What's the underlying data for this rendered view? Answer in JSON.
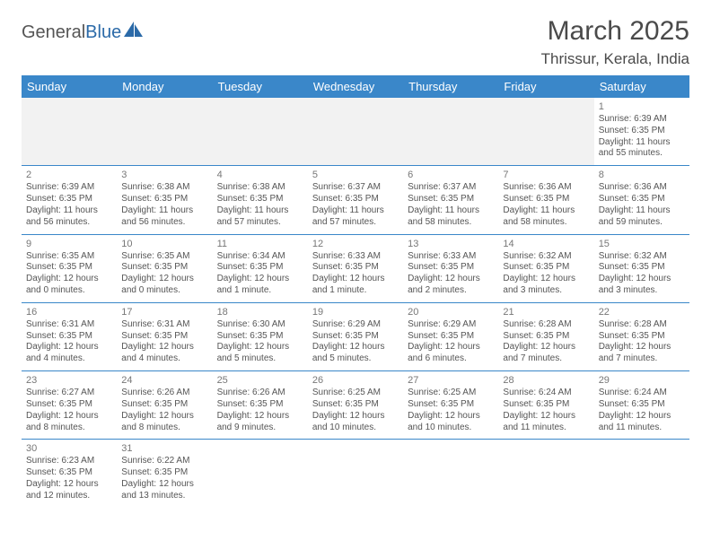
{
  "brand": {
    "part1": "General",
    "part2": "Blue"
  },
  "title": "March 2025",
  "location": "Thrissur, Kerala, India",
  "colors": {
    "header_bg": "#3a87c9",
    "header_text": "#ffffff",
    "row_border": "#3a87c9",
    "cell_text": "#555555",
    "daynum_text": "#777777",
    "empty_bg": "#f2f2f2",
    "title_text": "#4a4a4a",
    "brand_accent": "#2b6aa8"
  },
  "day_headers": [
    "Sunday",
    "Monday",
    "Tuesday",
    "Wednesday",
    "Thursday",
    "Friday",
    "Saturday"
  ],
  "weeks": [
    [
      null,
      null,
      null,
      null,
      null,
      null,
      {
        "n": "1",
        "sunrise": "Sunrise: 6:39 AM",
        "sunset": "Sunset: 6:35 PM",
        "daylight": "Daylight: 11 hours and 55 minutes."
      }
    ],
    [
      {
        "n": "2",
        "sunrise": "Sunrise: 6:39 AM",
        "sunset": "Sunset: 6:35 PM",
        "daylight": "Daylight: 11 hours and 56 minutes."
      },
      {
        "n": "3",
        "sunrise": "Sunrise: 6:38 AM",
        "sunset": "Sunset: 6:35 PM",
        "daylight": "Daylight: 11 hours and 56 minutes."
      },
      {
        "n": "4",
        "sunrise": "Sunrise: 6:38 AM",
        "sunset": "Sunset: 6:35 PM",
        "daylight": "Daylight: 11 hours and 57 minutes."
      },
      {
        "n": "5",
        "sunrise": "Sunrise: 6:37 AM",
        "sunset": "Sunset: 6:35 PM",
        "daylight": "Daylight: 11 hours and 57 minutes."
      },
      {
        "n": "6",
        "sunrise": "Sunrise: 6:37 AM",
        "sunset": "Sunset: 6:35 PM",
        "daylight": "Daylight: 11 hours and 58 minutes."
      },
      {
        "n": "7",
        "sunrise": "Sunrise: 6:36 AM",
        "sunset": "Sunset: 6:35 PM",
        "daylight": "Daylight: 11 hours and 58 minutes."
      },
      {
        "n": "8",
        "sunrise": "Sunrise: 6:36 AM",
        "sunset": "Sunset: 6:35 PM",
        "daylight": "Daylight: 11 hours and 59 minutes."
      }
    ],
    [
      {
        "n": "9",
        "sunrise": "Sunrise: 6:35 AM",
        "sunset": "Sunset: 6:35 PM",
        "daylight": "Daylight: 12 hours and 0 minutes."
      },
      {
        "n": "10",
        "sunrise": "Sunrise: 6:35 AM",
        "sunset": "Sunset: 6:35 PM",
        "daylight": "Daylight: 12 hours and 0 minutes."
      },
      {
        "n": "11",
        "sunrise": "Sunrise: 6:34 AM",
        "sunset": "Sunset: 6:35 PM",
        "daylight": "Daylight: 12 hours and 1 minute."
      },
      {
        "n": "12",
        "sunrise": "Sunrise: 6:33 AM",
        "sunset": "Sunset: 6:35 PM",
        "daylight": "Daylight: 12 hours and 1 minute."
      },
      {
        "n": "13",
        "sunrise": "Sunrise: 6:33 AM",
        "sunset": "Sunset: 6:35 PM",
        "daylight": "Daylight: 12 hours and 2 minutes."
      },
      {
        "n": "14",
        "sunrise": "Sunrise: 6:32 AM",
        "sunset": "Sunset: 6:35 PM",
        "daylight": "Daylight: 12 hours and 3 minutes."
      },
      {
        "n": "15",
        "sunrise": "Sunrise: 6:32 AM",
        "sunset": "Sunset: 6:35 PM",
        "daylight": "Daylight: 12 hours and 3 minutes."
      }
    ],
    [
      {
        "n": "16",
        "sunrise": "Sunrise: 6:31 AM",
        "sunset": "Sunset: 6:35 PM",
        "daylight": "Daylight: 12 hours and 4 minutes."
      },
      {
        "n": "17",
        "sunrise": "Sunrise: 6:31 AM",
        "sunset": "Sunset: 6:35 PM",
        "daylight": "Daylight: 12 hours and 4 minutes."
      },
      {
        "n": "18",
        "sunrise": "Sunrise: 6:30 AM",
        "sunset": "Sunset: 6:35 PM",
        "daylight": "Daylight: 12 hours and 5 minutes."
      },
      {
        "n": "19",
        "sunrise": "Sunrise: 6:29 AM",
        "sunset": "Sunset: 6:35 PM",
        "daylight": "Daylight: 12 hours and 5 minutes."
      },
      {
        "n": "20",
        "sunrise": "Sunrise: 6:29 AM",
        "sunset": "Sunset: 6:35 PM",
        "daylight": "Daylight: 12 hours and 6 minutes."
      },
      {
        "n": "21",
        "sunrise": "Sunrise: 6:28 AM",
        "sunset": "Sunset: 6:35 PM",
        "daylight": "Daylight: 12 hours and 7 minutes."
      },
      {
        "n": "22",
        "sunrise": "Sunrise: 6:28 AM",
        "sunset": "Sunset: 6:35 PM",
        "daylight": "Daylight: 12 hours and 7 minutes."
      }
    ],
    [
      {
        "n": "23",
        "sunrise": "Sunrise: 6:27 AM",
        "sunset": "Sunset: 6:35 PM",
        "daylight": "Daylight: 12 hours and 8 minutes."
      },
      {
        "n": "24",
        "sunrise": "Sunrise: 6:26 AM",
        "sunset": "Sunset: 6:35 PM",
        "daylight": "Daylight: 12 hours and 8 minutes."
      },
      {
        "n": "25",
        "sunrise": "Sunrise: 6:26 AM",
        "sunset": "Sunset: 6:35 PM",
        "daylight": "Daylight: 12 hours and 9 minutes."
      },
      {
        "n": "26",
        "sunrise": "Sunrise: 6:25 AM",
        "sunset": "Sunset: 6:35 PM",
        "daylight": "Daylight: 12 hours and 10 minutes."
      },
      {
        "n": "27",
        "sunrise": "Sunrise: 6:25 AM",
        "sunset": "Sunset: 6:35 PM",
        "daylight": "Daylight: 12 hours and 10 minutes."
      },
      {
        "n": "28",
        "sunrise": "Sunrise: 6:24 AM",
        "sunset": "Sunset: 6:35 PM",
        "daylight": "Daylight: 12 hours and 11 minutes."
      },
      {
        "n": "29",
        "sunrise": "Sunrise: 6:24 AM",
        "sunset": "Sunset: 6:35 PM",
        "daylight": "Daylight: 12 hours and 11 minutes."
      }
    ],
    [
      {
        "n": "30",
        "sunrise": "Sunrise: 6:23 AM",
        "sunset": "Sunset: 6:35 PM",
        "daylight": "Daylight: 12 hours and 12 minutes."
      },
      {
        "n": "31",
        "sunrise": "Sunrise: 6:22 AM",
        "sunset": "Sunset: 6:35 PM",
        "daylight": "Daylight: 12 hours and 13 minutes."
      },
      null,
      null,
      null,
      null,
      null
    ]
  ]
}
